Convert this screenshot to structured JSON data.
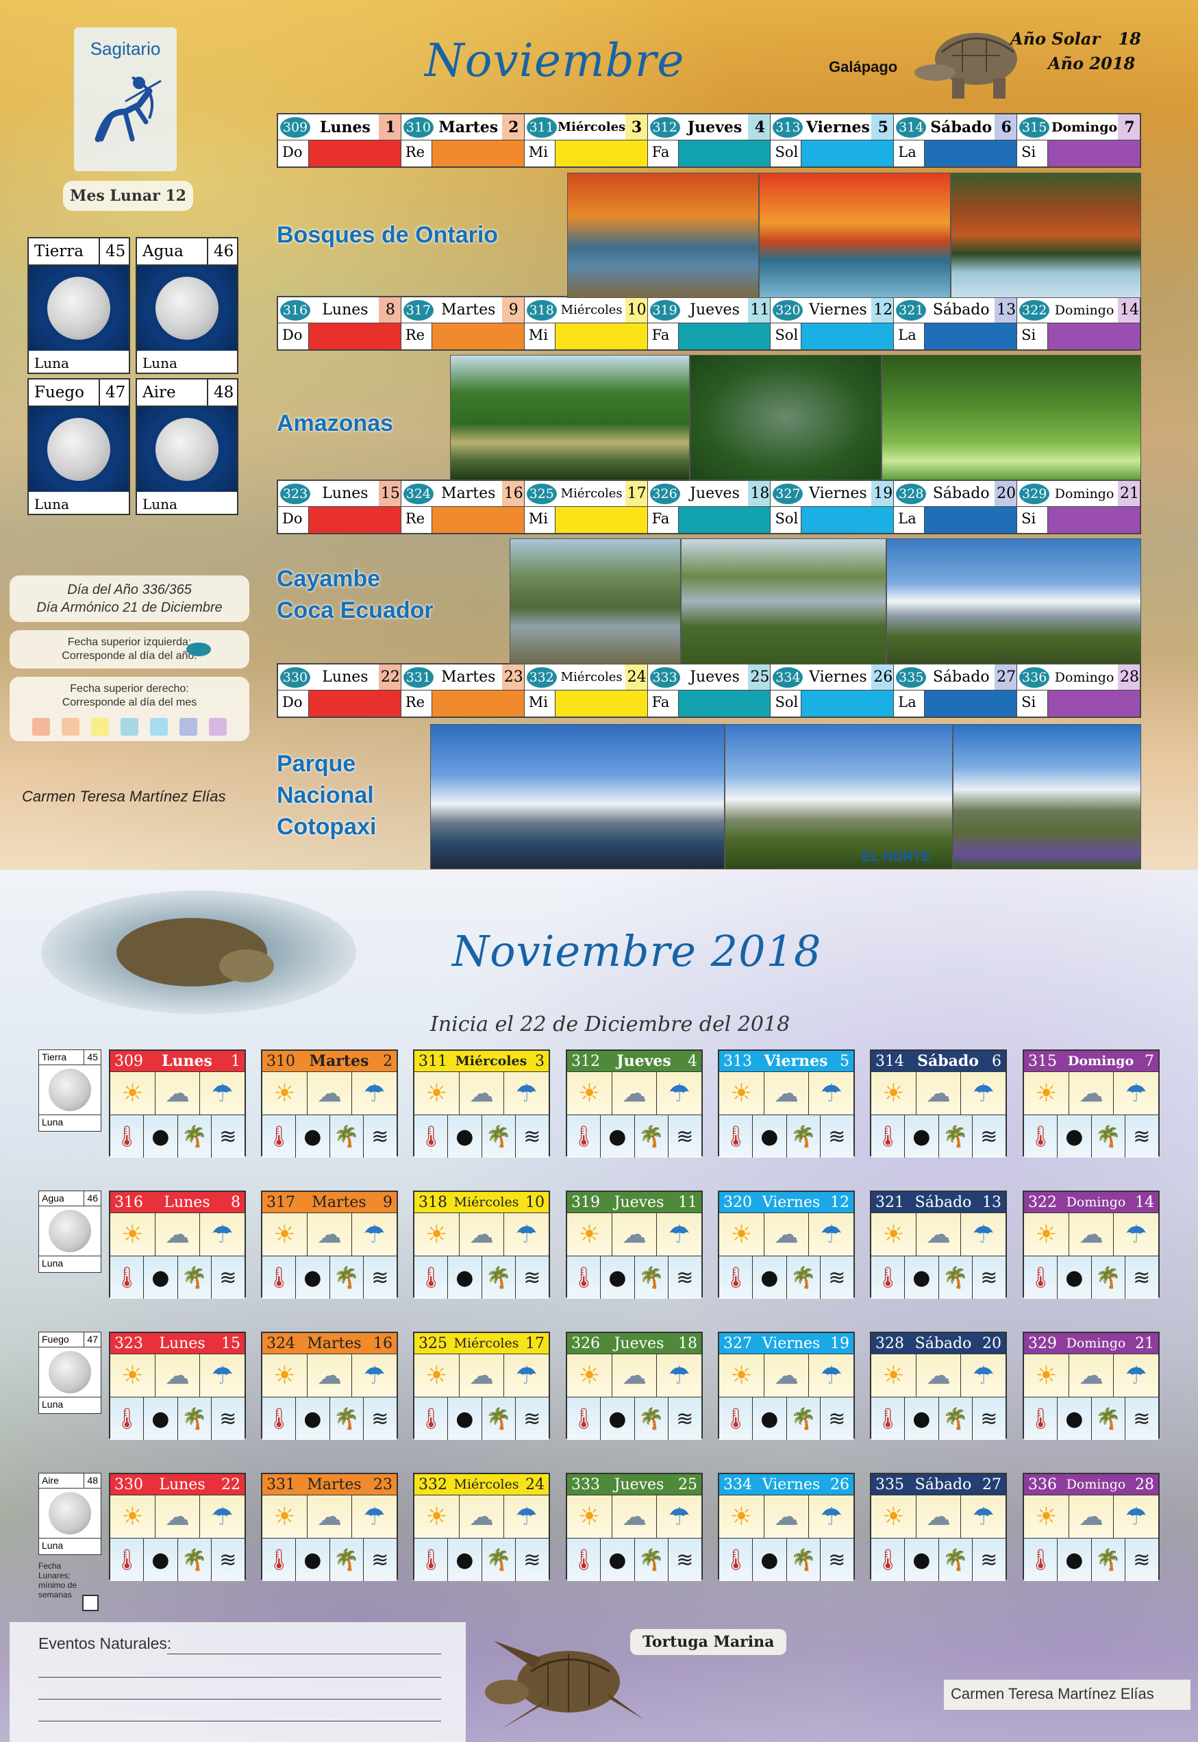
{
  "header": {
    "zodiac_label": "Sagitario",
    "month_title": "Noviembre",
    "animal_label": "Galápago",
    "solar_year_label": "Año Solar",
    "solar_year_value": "18",
    "year_label": "Año 2018",
    "lunar_month": "Mes Lunar 12"
  },
  "moons": [
    {
      "name": "Tierra",
      "num": "45",
      "foot": "Luna"
    },
    {
      "name": "Agua",
      "num": "46",
      "foot": "Luna"
    },
    {
      "name": "Fuego",
      "num": "47",
      "foot": "Luna"
    },
    {
      "name": "Aire",
      "num": "48",
      "foot": "Luna"
    }
  ],
  "notes": {
    "day_of_year": "Día del Año 336/365",
    "harmonic_day": "Día Armónico 21 de Diciembre",
    "legend_left_1": "Fecha superior izquierda:",
    "legend_left_2": "Corresponde al día del año.",
    "legend_right_1": "Fecha superior derecho:",
    "legend_right_2": "Corresponde al día del mes",
    "author": "Carmen Teresa Martínez Elías",
    "swatches": [
      "#f5b79a",
      "#f7c8a0",
      "#f8ee8a",
      "#a8d8e3",
      "#a8dcf0",
      "#b2bde3",
      "#d8b8e0"
    ]
  },
  "day_abbr": [
    "Do",
    "Re",
    "Mi",
    "Fa",
    "Sol",
    "La",
    "Si"
  ],
  "day_colors": [
    "#e8312c",
    "#f18a2c",
    "#fbe318",
    "#13a3b0",
    "#1ab0e3",
    "#1f6fb8",
    "#9a4fb0"
  ],
  "day_head_colors": [
    "#f3b8a0",
    "#f6c4a2",
    "#fbf08e",
    "#b1dfe8",
    "#b2e0f3",
    "#c1c9e9",
    "#e0c6e8"
  ],
  "weeks": [
    {
      "names": [
        "Lunes",
        "Martes",
        "Miércoles",
        "Jueves",
        "Viernes",
        "Sábado",
        "Domingo"
      ],
      "ydays": [
        "309",
        "310",
        "311",
        "312",
        "313",
        "314",
        "315"
      ],
      "mdays": [
        "1",
        "2",
        "3",
        "4",
        "5",
        "6",
        "7"
      ],
      "place": [
        "Bosques de Ontario"
      ]
    },
    {
      "names": [
        "Lunes",
        "Martes",
        "Miércoles",
        "Jueves",
        "Viernes",
        "Sábado",
        "Domingo"
      ],
      "ydays": [
        "316",
        "317",
        "318",
        "319",
        "320",
        "321",
        "322"
      ],
      "mdays": [
        "8",
        "9",
        "10",
        "11",
        "12",
        "13",
        "14"
      ],
      "place": [
        "Amazonas"
      ]
    },
    {
      "names": [
        "Lunes",
        "Martes",
        "Miércoles",
        "Jueves",
        "Viernes",
        "Sábado",
        "Domingo"
      ],
      "ydays": [
        "323",
        "324",
        "325",
        "326",
        "327",
        "328",
        "329"
      ],
      "mdays": [
        "15",
        "16",
        "17",
        "18",
        "19",
        "20",
        "21"
      ],
      "place": [
        "Cayambe",
        "Coca Ecuador"
      ]
    },
    {
      "names": [
        "Lunes",
        "Martes",
        "Miércoles",
        "Jueves",
        "Viernes",
        "Sábado",
        "Domingo"
      ],
      "ydays": [
        "330",
        "331",
        "332",
        "333",
        "334",
        "335",
        "336"
      ],
      "mdays": [
        "22",
        "23",
        "24",
        "25",
        "26",
        "27",
        "28"
      ],
      "place": [
        "Parque",
        "Nacional",
        "Cotopaxi"
      ]
    }
  ],
  "photo_credit": "EL NORTE",
  "bottom": {
    "title": "Noviembre 2018",
    "subtitle": "Inicia el 22 de Diciembre del 2018",
    "head_colors": [
      "#e8313a",
      "#f08a2c",
      "#f8e318",
      "#4f8a3a",
      "#1aa9e6",
      "#233f73",
      "#8e3d9c"
    ],
    "head_text_colors": [
      "#ffffff",
      "#222222",
      "#222222",
      "#ffffff",
      "#ffffff",
      "#ffffff",
      "#ffffff"
    ],
    "moon_boxes": [
      {
        "name": "Tierra",
        "num": "45",
        "foot": "Luna"
      },
      {
        "name": "Agua",
        "num": "46",
        "foot": "Luna"
      },
      {
        "name": "Fuego",
        "num": "47",
        "foot": "Luna"
      },
      {
        "name": "Aire",
        "num": "48",
        "foot": "Luna"
      }
    ],
    "fecha_note": "Fecha Lunares; mínimo de semanas",
    "events_label": "Eventos Naturales:",
    "turtle_label": "Tortuga Marina",
    "author": "Carmen Teresa Martínez Elías",
    "weather_icons": [
      "sun-icon",
      "cloud-icon",
      "rain-icon",
      "thermometer-sun-icon",
      "moon-phase-icon",
      "palm-tree-icon",
      "windy-tree-icon"
    ]
  }
}
